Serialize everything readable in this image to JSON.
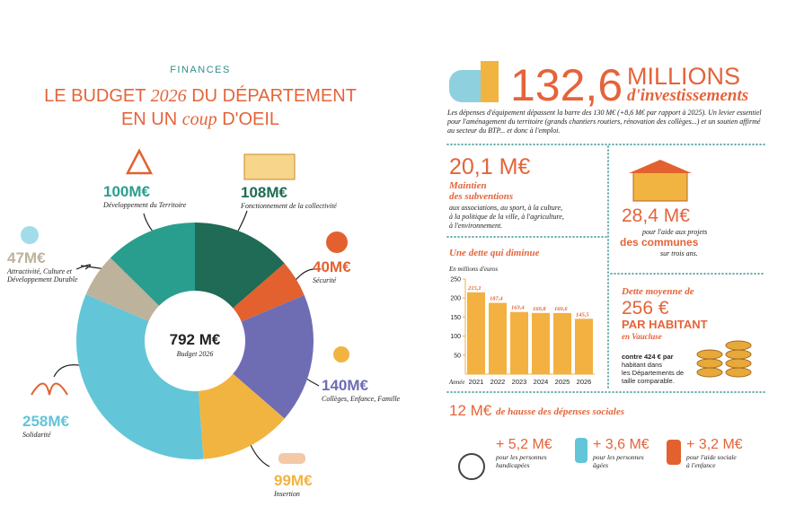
{
  "header": {
    "kicker": "FINANCES",
    "title_line1": [
      "LE BUDGET ",
      "2026",
      " DU DÉPARTEMENT"
    ],
    "title_line2": [
      "EN UN ",
      "coup",
      " D'OEIL"
    ]
  },
  "chart_data": [
    {
      "type": "pie",
      "center_label": "792 M€",
      "center_sublabel": "Budget 2026",
      "categories": [
        "Fonctionnement de la collectivité",
        "Sécurité",
        "Collèges, Enfance, Famille",
        "Insertion",
        "Solidarité",
        "Attractivité, Culture et Développement Durable",
        "Développement du Territoire"
      ],
      "values": [
        108,
        40,
        140,
        99,
        258,
        47,
        100
      ],
      "value_labels": [
        "108M€",
        "40M€",
        "140M€",
        "99M€",
        "258M€",
        "47M€",
        "100M€"
      ],
      "colors": [
        "#1f6b55",
        "#e2612f",
        "#6e6db4",
        "#f1b441",
        "#63c5d8",
        "#bdb29b",
        "#2a9e8e"
      ]
    },
    {
      "type": "bar",
      "title": "Une dette qui diminue",
      "subtitle": "En millions d'euros",
      "x_label": "Année",
      "categories": [
        "2021",
        "2022",
        "2023",
        "2024",
        "2025",
        "2026"
      ],
      "values": [
        215.1,
        187.4,
        163.4,
        160.8,
        160.6,
        145.5
      ],
      "value_labels": [
        "215,1",
        "187,4",
        "163,4",
        "160,8",
        "160,6",
        "145,5"
      ],
      "color": "#f2b141",
      "ylim": [
        0,
        250
      ],
      "yticks": [
        50,
        100,
        150,
        200,
        250
      ]
    }
  ],
  "investment": {
    "amount": "132,6",
    "unit": "MILLIONS",
    "label": "d'investissements",
    "text": "Les dépenses d'équipement dépassent la barre des 130 M€ (+8,6 M€ par rapport à 2025). Un levier essentiel pour l'aménagement du territoire (grands chantiers routiers, rénovation des collèges...) et un soutien affirmé au secteur du BTP... et donc à l'emploi."
  },
  "subsidies": {
    "amount": "20,1 M€",
    "title_lines": [
      "Maintien",
      "des subventions"
    ],
    "lines": [
      "aux associations, au sport, à la culture,",
      "à la politique de la ville, à l'agriculture,",
      "à l'environnement."
    ]
  },
  "communes": {
    "amount": "28,4 M€",
    "line1": "pour l'aide aux projets",
    "highlight": "des communes",
    "line2": "sur trois ans."
  },
  "average_debt": {
    "title": "Dette moyenne de",
    "amount": "256 €",
    "unit": "PAR HABITANT",
    "place": "en Vaucluse",
    "compare_lines": [
      "contre 424 € par",
      "habitant dans",
      "les Départements de",
      "taille comparable."
    ]
  },
  "social": {
    "amount": "12 M€",
    "label": "de hausse des dépenses sociales",
    "items": [
      {
        "amount": "+ 5,2 M€",
        "lines": [
          "pour les personnes",
          "handicapées"
        ]
      },
      {
        "amount": "+ 3,6 M€",
        "lines": [
          "pour les personnes",
          "âgées"
        ]
      },
      {
        "amount": "+ 3,2 M€",
        "lines": [
          "pour l'aide sociale",
          "à l'enfance"
        ]
      }
    ]
  }
}
